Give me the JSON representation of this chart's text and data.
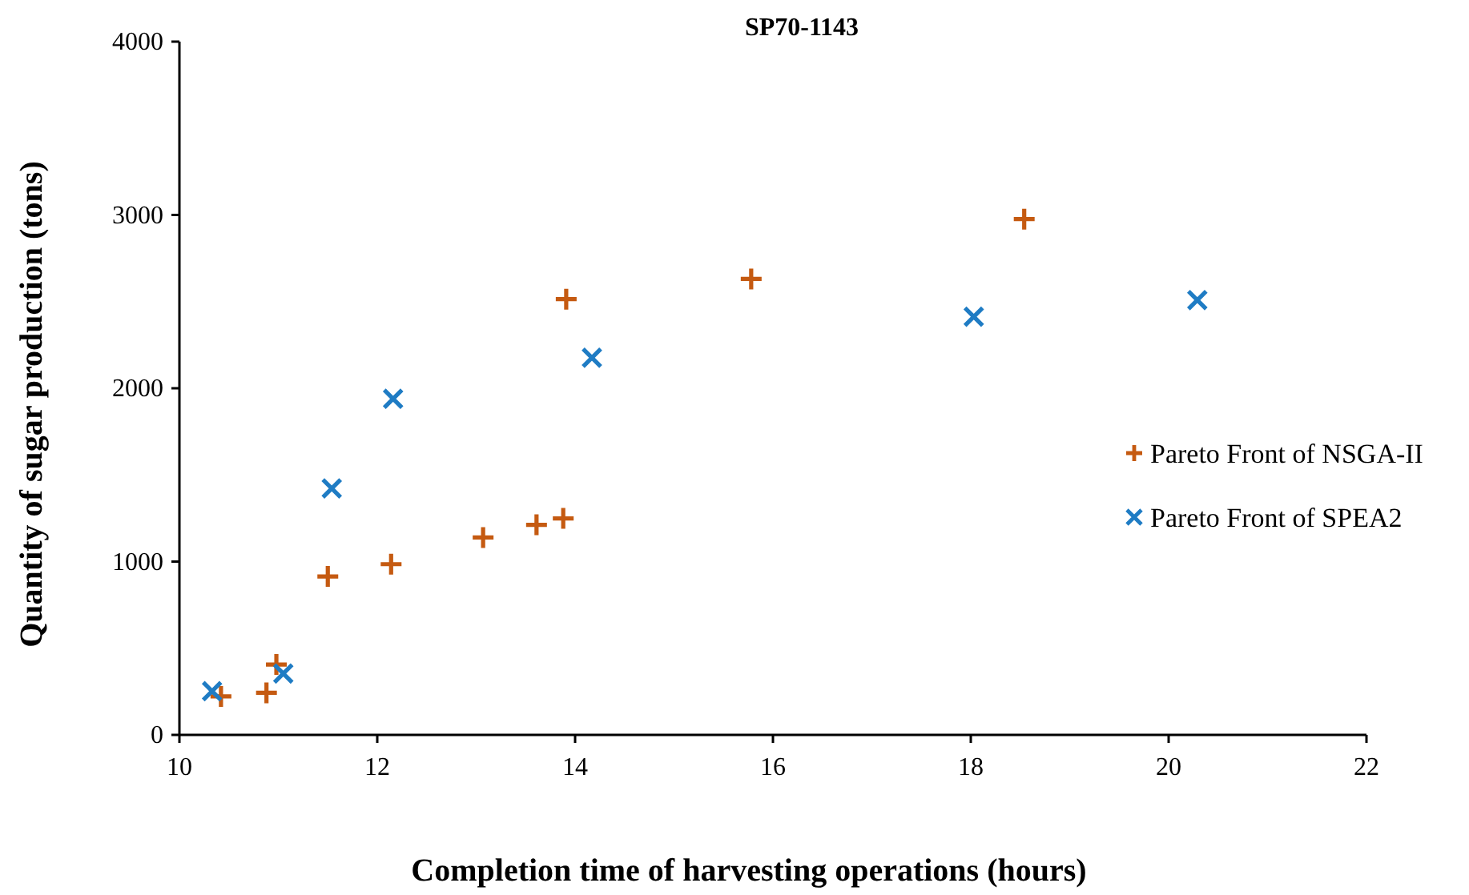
{
  "chart_data": {
    "type": "scatter",
    "title": "SP70-1143",
    "xlabel": "Completion time of harvesting operations (hours)",
    "ylabel": "Quantity of sugar production (tons)",
    "xlim": [
      10,
      22
    ],
    "xticks": [
      10,
      12,
      14,
      16,
      18,
      20,
      22
    ],
    "ylim": [
      0,
      4000
    ],
    "yticks": [
      0,
      1000,
      2000,
      3000,
      4000
    ],
    "grid": false,
    "legend": "right",
    "series": [
      {
        "name": "Pareto Front of NSGA-II",
        "color": "#c55a11",
        "marker": "cross",
        "x": [
          10.42,
          10.88,
          10.98,
          11.5,
          12.14,
          13.07,
          13.61,
          13.88,
          13.91,
          15.78,
          18.54
        ],
        "values": [
          222,
          243,
          406,
          914,
          985,
          1139,
          1212,
          1249,
          2514,
          2631,
          2976
        ]
      },
      {
        "name": "Pareto Front of SPEA2",
        "color": "#1f7cc4",
        "marker": "x",
        "x": [
          10.33,
          11.05,
          11.54,
          12.16,
          14.17,
          18.03,
          20.29
        ],
        "values": [
          252,
          354,
          1422,
          1939,
          2176,
          2413,
          2509
        ]
      }
    ]
  }
}
